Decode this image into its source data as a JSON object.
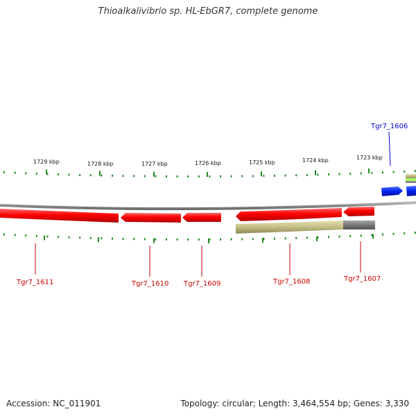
{
  "header": {
    "title": "Thioalkalivibrio sp. HL-EbGR7, complete genome"
  },
  "footer": {
    "accession": "Accession: NC_011901",
    "summary": "Topology: circular; Length: 3,464,554 bp; Genes: 3,330"
  },
  "scale": {
    "labels": [
      "1729 kbp",
      "1728 kbp",
      "1727 kbp",
      "1726 kbp",
      "1725 kbp",
      "1724 kbp",
      "1723 kbp"
    ]
  },
  "genes": [
    {
      "name": "Tgr7_1611",
      "color": "#cc0000"
    },
    {
      "name": "Tgr7_1610",
      "color": "#cc0000"
    },
    {
      "name": "Tgr7_1609",
      "color": "#cc0000"
    },
    {
      "name": "Tgr7_1608",
      "color": "#cc0000"
    },
    {
      "name": "Tgr7_1607",
      "color": "#cc0000"
    },
    {
      "name": "Tgr7_1606",
      "color": "#0000cc"
    }
  ],
  "colors": {
    "cds_reverse": "#ff0000",
    "cds_forward": "#0000ee",
    "rna": "#b5b07a",
    "backbone": "#888888",
    "ticks": "#228b22"
  }
}
